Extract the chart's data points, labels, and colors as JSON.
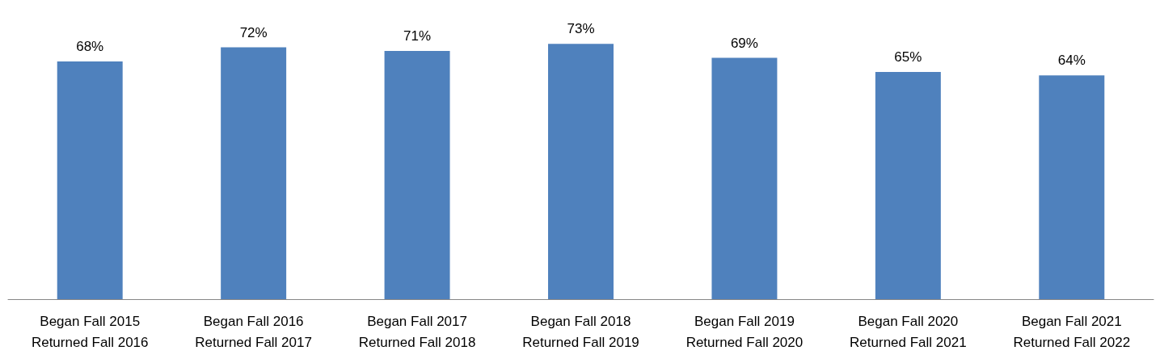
{
  "chart_data": {
    "type": "bar",
    "categories": [
      "Began Fall 2015\nReturned Fall 2016",
      "Began Fall 2016\nReturned Fall 2017",
      "Began Fall 2017\nReturned Fall 2018",
      "Began Fall 2018\nReturned Fall 2019",
      "Began Fall 2019\nReturned Fall 2020",
      "Began Fall 2020\nReturned Fall 2021",
      "Began Fall 2021\nReturned Fall 2022"
    ],
    "values": [
      68,
      72,
      71,
      73,
      69,
      65,
      64
    ],
    "value_labels": [
      "68%",
      "72%",
      "71%",
      "73%",
      "69%",
      "65%",
      "64%"
    ],
    "color": "#4f81bd"
  }
}
